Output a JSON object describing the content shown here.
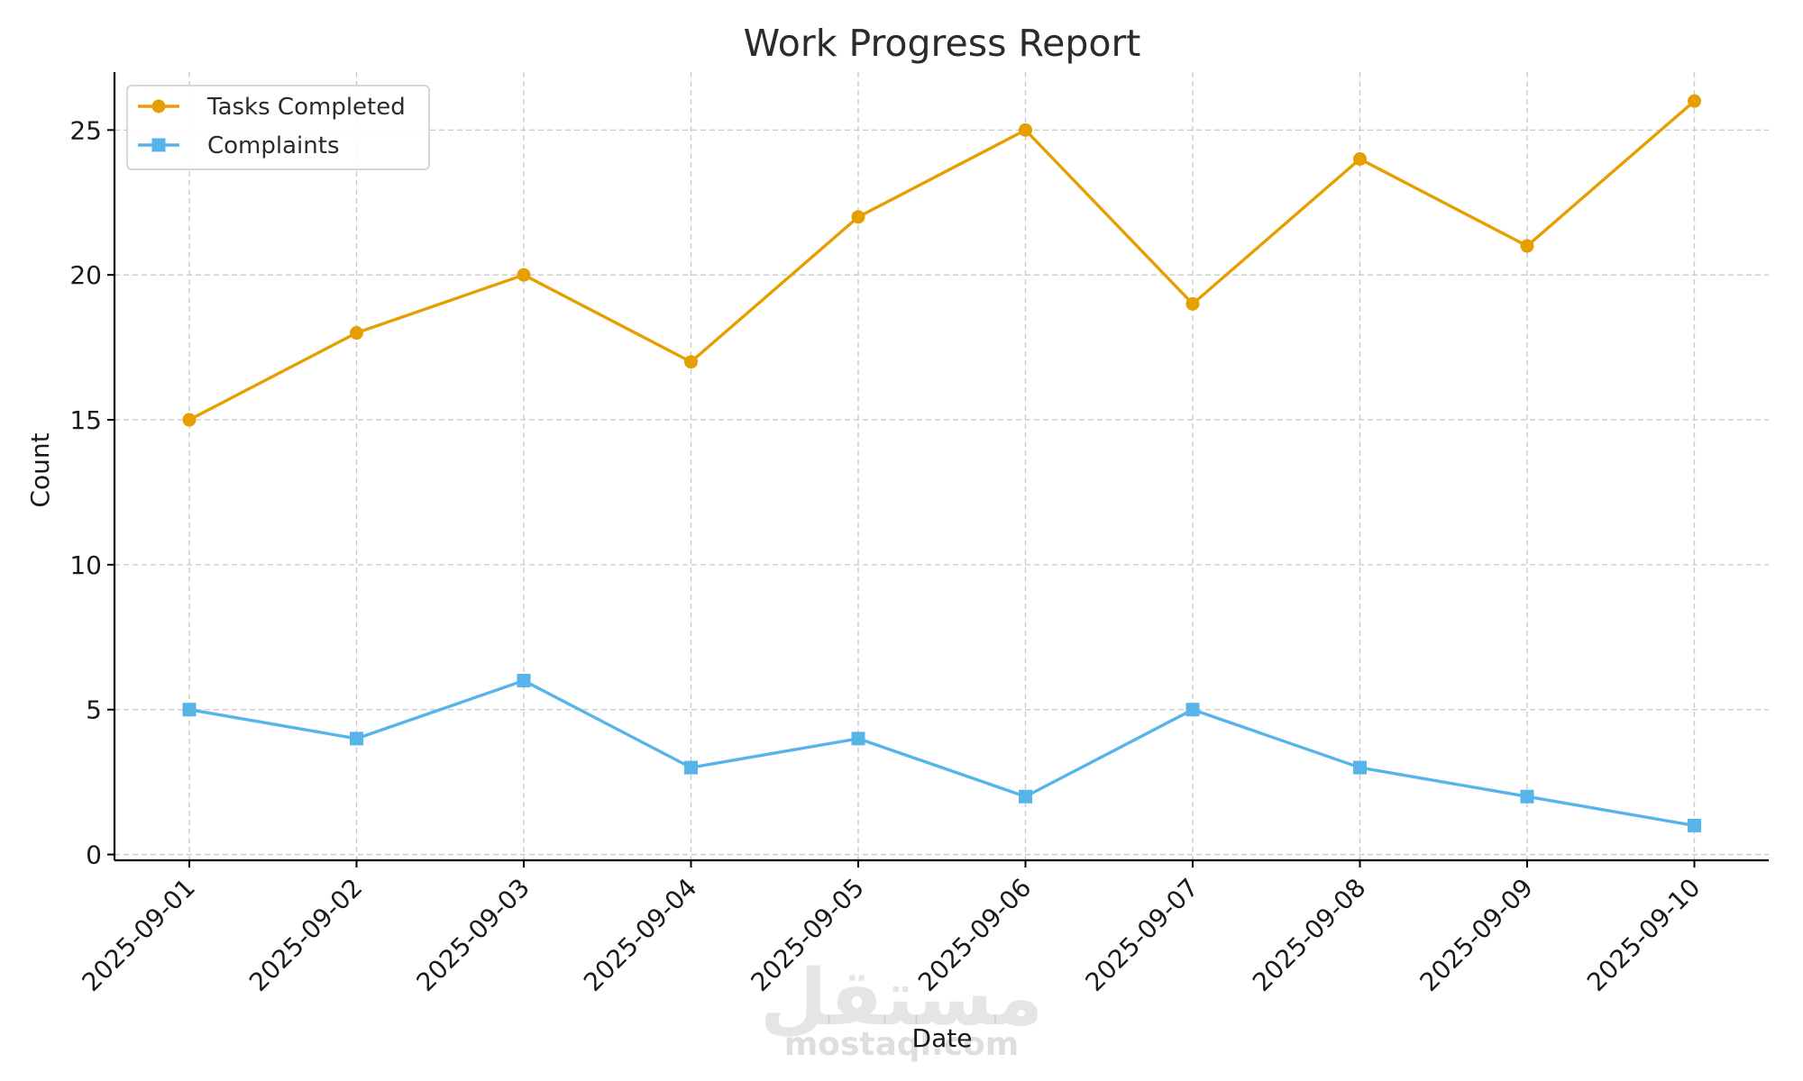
{
  "chart_data": {
    "type": "line",
    "title": "Work Progress Report",
    "xlabel": "Date",
    "ylabel": "Count",
    "categories": [
      "2025-09-01",
      "2025-09-02",
      "2025-09-03",
      "2025-09-04",
      "2025-09-05",
      "2025-09-06",
      "2025-09-07",
      "2025-09-08",
      "2025-09-09",
      "2025-09-10"
    ],
    "y_ticks": [
      0,
      5,
      10,
      15,
      20,
      25
    ],
    "ylim": [
      -0.2,
      27
    ],
    "grid": true,
    "legend_position": "top-left",
    "series": [
      {
        "name": "Tasks Completed",
        "color": "#E69F00",
        "marker": "circle",
        "values": [
          15,
          18,
          20,
          17,
          22,
          25,
          19,
          24,
          21,
          26
        ]
      },
      {
        "name": "Complaints",
        "color": "#56B4E9",
        "marker": "square",
        "values": [
          5,
          4,
          6,
          3,
          4,
          2,
          5,
          3,
          2,
          1
        ]
      }
    ]
  },
  "watermark": {
    "logo_text": "مستقل",
    "text": "mostaql.com"
  }
}
